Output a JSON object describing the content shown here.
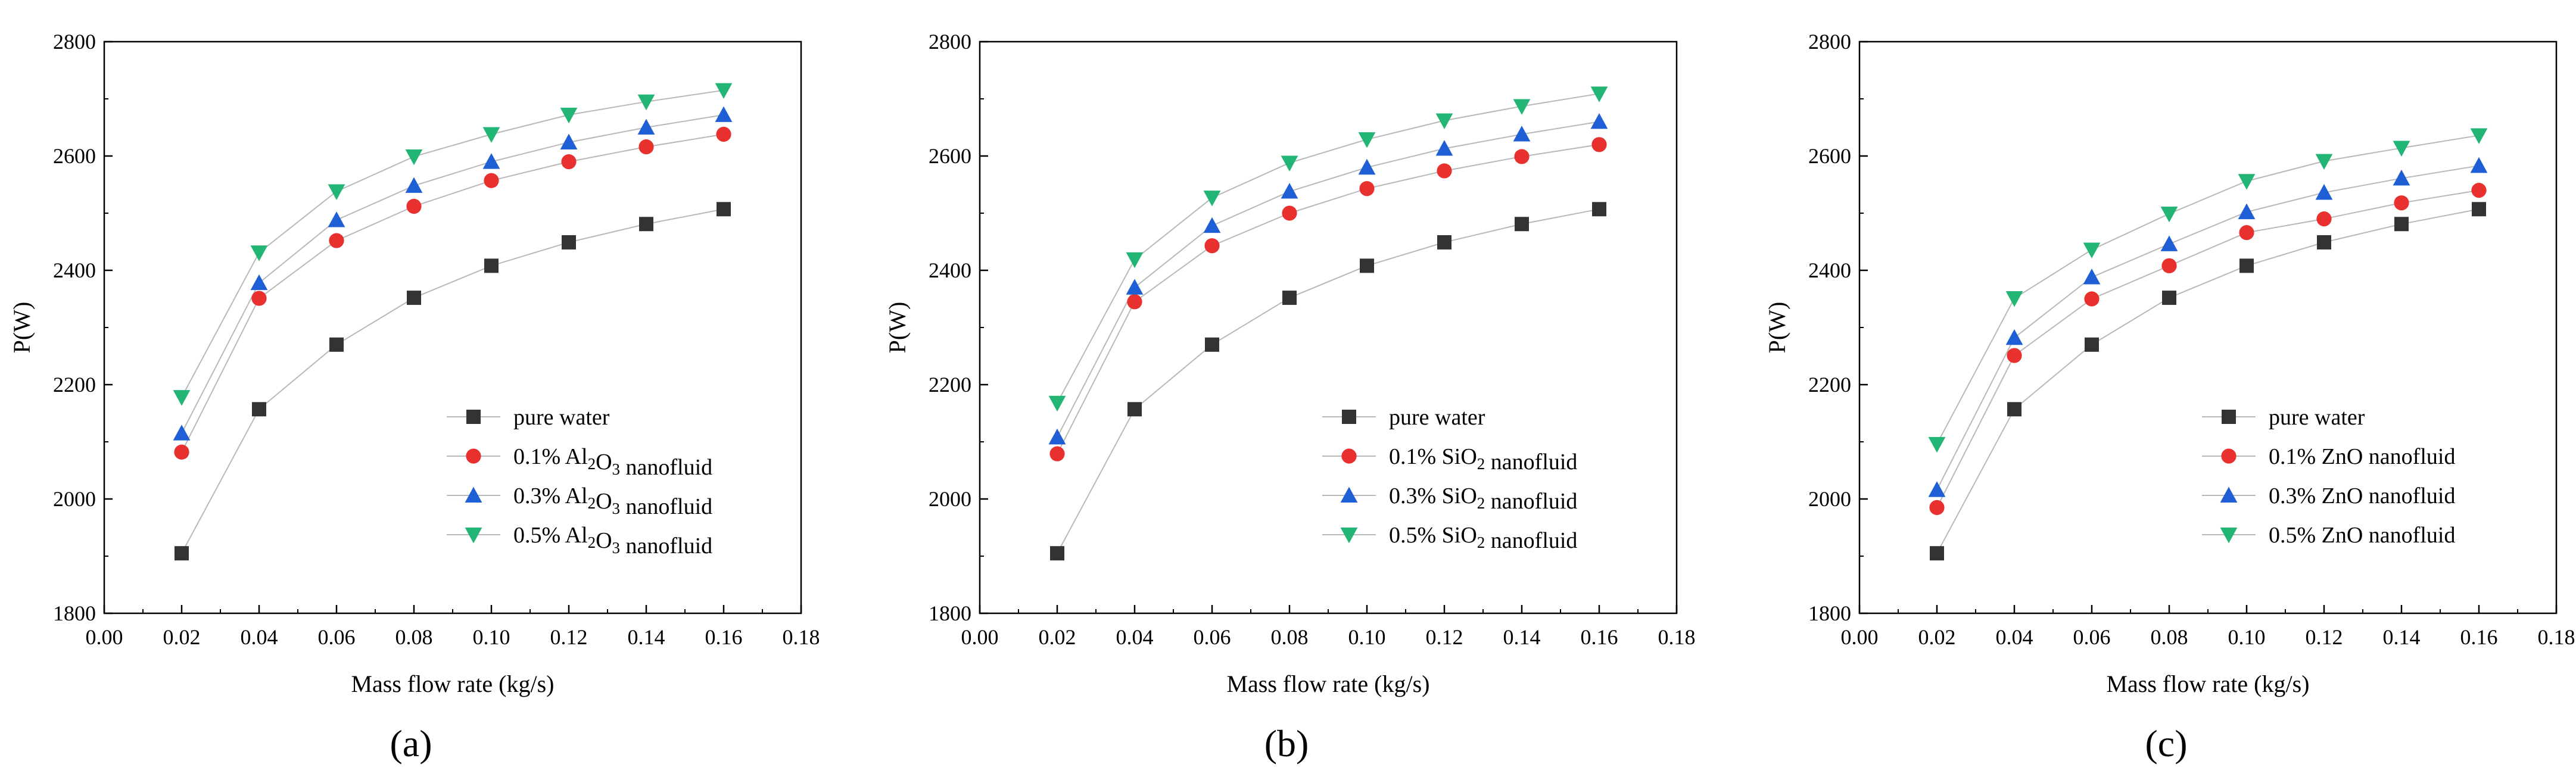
{
  "chart_data": [
    {
      "type": "line",
      "panel_label": "(a)",
      "xlabel": "Mass flow rate (kg/s)",
      "ylabel": "P(W)",
      "xlim": [
        0,
        0.18
      ],
      "ylim": [
        1800,
        2800
      ],
      "x_ticks": [
        "0.00",
        "0.02",
        "0.04",
        "0.06",
        "0.08",
        "0.10",
        "0.12",
        "0.14",
        "0.16",
        "0.18"
      ],
      "y_ticks": [
        "1800",
        "2000",
        "2200",
        "2400",
        "2600",
        "2800"
      ],
      "x": [
        0.02,
        0.04,
        0.06,
        0.08,
        0.1,
        0.12,
        0.14,
        0.16
      ],
      "legend_position": "bottom-right",
      "series": [
        {
          "name": "pure water",
          "legend": {
            "prefix": "pure water",
            "sub": "",
            "suffix": ""
          },
          "marker": "square",
          "color": "#333333",
          "values": [
            1905,
            2157,
            2270,
            2352,
            2408,
            2449,
            2481,
            2507
          ]
        },
        {
          "name": "0.1% Al2O3 nanofluid",
          "legend": {
            "prefix": "0.1% Al",
            "sub": "2",
            "mid": "O",
            "sub2": "3",
            "suffix": " nanofluid"
          },
          "marker": "circle",
          "color": "#e8312f",
          "values": [
            2082,
            2351,
            2452,
            2512,
            2557,
            2590,
            2616,
            2638
          ]
        },
        {
          "name": "0.3% Al2O3 nanofluid",
          "legend": {
            "prefix": "0.3% Al",
            "sub": "2",
            "mid": "O",
            "sub2": "3",
            "suffix": " nanofluid"
          },
          "marker": "triangle-up",
          "color": "#1f5fd6",
          "values": [
            2115,
            2378,
            2488,
            2548,
            2590,
            2624,
            2650,
            2672
          ]
        },
        {
          "name": "0.5% Al2O3 nanofluid",
          "legend": {
            "prefix": "0.5% Al",
            "sub": "2",
            "mid": "O",
            "sub2": "3",
            "suffix": " nanofluid"
          },
          "marker": "triangle-down",
          "color": "#22b573",
          "values": [
            2178,
            2431,
            2538,
            2599,
            2638,
            2672,
            2695,
            2715
          ]
        }
      ]
    },
    {
      "type": "line",
      "panel_label": "(b)",
      "xlabel": "Mass flow rate (kg/s)",
      "ylabel": "P(W)",
      "xlim": [
        0,
        0.18
      ],
      "ylim": [
        1800,
        2800
      ],
      "x_ticks": [
        "0.00",
        "0.02",
        "0.04",
        "0.06",
        "0.08",
        "0.10",
        "0.12",
        "0.14",
        "0.16",
        "0.18"
      ],
      "y_ticks": [
        "1800",
        "2000",
        "2200",
        "2400",
        "2600",
        "2800"
      ],
      "x": [
        0.02,
        0.04,
        0.06,
        0.08,
        0.1,
        0.12,
        0.14,
        0.16
      ],
      "legend_position": "bottom-right",
      "series": [
        {
          "name": "pure water",
          "legend": {
            "prefix": "pure water",
            "sub": "",
            "suffix": ""
          },
          "marker": "square",
          "color": "#333333",
          "values": [
            1905,
            2157,
            2270,
            2352,
            2408,
            2449,
            2481,
            2507
          ]
        },
        {
          "name": "0.1% SiO2 nanofluid",
          "legend": {
            "prefix": "0.1% SiO",
            "sub": "2",
            "suffix": " nanofluid"
          },
          "marker": "circle",
          "color": "#e8312f",
          "values": [
            2079,
            2345,
            2443,
            2500,
            2543,
            2574,
            2599,
            2620
          ]
        },
        {
          "name": "0.3% SiO2 nanofluid",
          "legend": {
            "prefix": "0.3% SiO",
            "sub": "2",
            "suffix": " nanofluid"
          },
          "marker": "triangle-up",
          "color": "#1f5fd6",
          "values": [
            2108,
            2370,
            2478,
            2538,
            2580,
            2613,
            2638,
            2660
          ]
        },
        {
          "name": "0.5% SiO2 nanofluid",
          "legend": {
            "prefix": "0.5% SiO",
            "sub": "2",
            "suffix": " nanofluid"
          },
          "marker": "triangle-down",
          "color": "#22b573",
          "values": [
            2168,
            2419,
            2527,
            2588,
            2629,
            2662,
            2687,
            2709
          ]
        }
      ]
    },
    {
      "type": "line",
      "panel_label": "(c)",
      "xlabel": "Mass flow rate (kg/s)",
      "ylabel": "P(W)",
      "xlim": [
        0,
        0.18
      ],
      "ylim": [
        1800,
        2800
      ],
      "x_ticks": [
        "0.00",
        "0.02",
        "0.04",
        "0.06",
        "0.08",
        "0.10",
        "0.12",
        "0.14",
        "0.16",
        "0.18"
      ],
      "y_ticks": [
        "1800",
        "2000",
        "2200",
        "2400",
        "2600",
        "2800"
      ],
      "x": [
        0.02,
        0.04,
        0.06,
        0.08,
        0.1,
        0.12,
        0.14,
        0.16
      ],
      "legend_position": "bottom-right",
      "series": [
        {
          "name": "pure water",
          "legend": {
            "prefix": "pure water",
            "sub": "",
            "suffix": ""
          },
          "marker": "square",
          "color": "#333333",
          "values": [
            1905,
            2157,
            2270,
            2352,
            2408,
            2449,
            2481,
            2507
          ]
        },
        {
          "name": "0.1% ZnO nanofluid",
          "legend": {
            "prefix": "0.1% ZnO nanofluid",
            "sub": "",
            "suffix": ""
          },
          "marker": "circle",
          "color": "#e8312f",
          "values": [
            1985,
            2251,
            2350,
            2408,
            2466,
            2490,
            2518,
            2540
          ]
        },
        {
          "name": "0.3% ZnO nanofluid",
          "legend": {
            "prefix": "0.3% ZnO nanofluid",
            "sub": "",
            "suffix": ""
          },
          "marker": "triangle-up",
          "color": "#1f5fd6",
          "values": [
            2016,
            2282,
            2388,
            2446,
            2502,
            2536,
            2561,
            2583
          ]
        },
        {
          "name": "0.5% ZnO nanofluid",
          "legend": {
            "prefix": "0.5% ZnO nanofluid",
            "sub": "",
            "suffix": ""
          },
          "marker": "triangle-down",
          "color": "#22b573",
          "values": [
            2096,
            2351,
            2436,
            2499,
            2556,
            2591,
            2614,
            2636
          ]
        }
      ]
    }
  ]
}
